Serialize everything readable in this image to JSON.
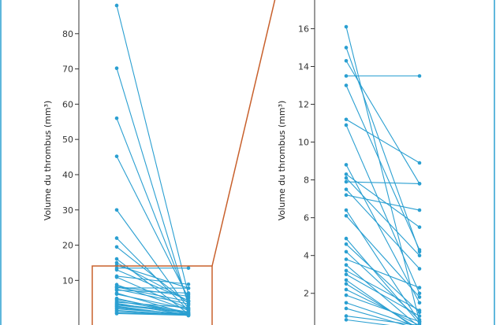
{
  "colors": {
    "series": "#2a9fd1",
    "zoom_box": "#c8602c",
    "axis": "#333333",
    "frame": "#2a9fd1"
  },
  "chart_data": [
    {
      "type": "line",
      "ylabel": "Volume du thrombus (mm³)",
      "ylim": [
        -6,
        90
      ],
      "yticks": [
        10,
        20,
        30,
        40,
        50,
        60,
        70,
        80
      ],
      "x": [
        0,
        1
      ],
      "grid": false,
      "pairs": [
        [
          88,
          6
        ],
        [
          70.2,
          3
        ],
        [
          56,
          4
        ],
        [
          45.2,
          5
        ],
        [
          30,
          2
        ],
        [
          22,
          1.5
        ],
        [
          19.5,
          3.5
        ],
        [
          16.1,
          0.5
        ],
        [
          15,
          4.2
        ],
        [
          14.3,
          7.8
        ],
        [
          13.5,
          13.5
        ],
        [
          13,
          4.3
        ],
        [
          11.2,
          8.9
        ],
        [
          10.9,
          2
        ],
        [
          8.8,
          1.5
        ],
        [
          8.3,
          5.5
        ],
        [
          8.1,
          4
        ],
        [
          7.9,
          7.8
        ],
        [
          7.5,
          3.3
        ],
        [
          7.2,
          6.4
        ],
        [
          6.4,
          0.5
        ],
        [
          6.1,
          1.8
        ],
        [
          4.9,
          0.4
        ],
        [
          4.6,
          1
        ],
        [
          4.2,
          0.6
        ],
        [
          3.8,
          2.3
        ],
        [
          3.5,
          0.2
        ],
        [
          3.2,
          1.1
        ],
        [
          3,
          0.8
        ],
        [
          2.7,
          0
        ],
        [
          2.5,
          0.1
        ],
        [
          2.2,
          0.3
        ],
        [
          1.9,
          0.5
        ],
        [
          1.5,
          0.2
        ],
        [
          1.2,
          0.1
        ],
        [
          0.8,
          0.3
        ],
        [
          0.6,
          0.1
        ]
      ]
    },
    {
      "type": "line",
      "ylabel": "Volume du thrombus (mm³)",
      "ylim": [
        -0.3,
        17.6
      ],
      "yticks": [
        2,
        4,
        6,
        8,
        10,
        12,
        14,
        16
      ],
      "x": [
        0,
        1
      ],
      "grid": false,
      "pairs": [
        [
          16.1,
          0.5
        ],
        [
          15,
          4.2
        ],
        [
          14.3,
          7.8
        ],
        [
          13.5,
          13.5
        ],
        [
          13,
          4.3
        ],
        [
          11.2,
          8.9
        ],
        [
          10.9,
          2
        ],
        [
          8.8,
          1.5
        ],
        [
          8.3,
          5.5
        ],
        [
          8.1,
          4
        ],
        [
          7.9,
          7.8
        ],
        [
          7.5,
          3.3
        ],
        [
          7.2,
          6.4
        ],
        [
          6.4,
          0.5
        ],
        [
          6.1,
          1.8
        ],
        [
          4.9,
          0.4
        ],
        [
          4.6,
          1
        ],
        [
          4.2,
          0.6
        ],
        [
          3.8,
          2.3
        ],
        [
          3.5,
          0.2
        ],
        [
          3.2,
          1.1
        ],
        [
          3,
          0.8
        ],
        [
          2.7,
          0
        ],
        [
          2.5,
          0.1
        ],
        [
          2.2,
          0.3
        ],
        [
          1.9,
          0.5
        ],
        [
          1.5,
          0.2
        ],
        [
          1.2,
          0.1
        ],
        [
          0.8,
          0.3
        ],
        [
          0.6,
          0.1
        ]
      ]
    }
  ]
}
